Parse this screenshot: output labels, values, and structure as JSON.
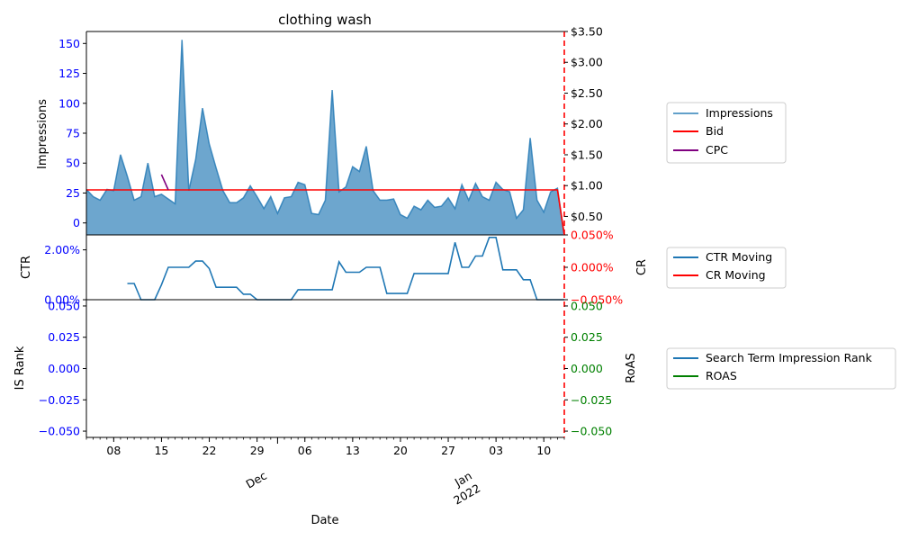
{
  "title": "clothing wash",
  "xlabel": "Date",
  "x_ticks": [
    "08",
    "15",
    "22",
    "29",
    "06",
    "13",
    "20",
    "27",
    "03",
    "10"
  ],
  "x_month_labels": [
    "Dec",
    "Jan"
  ],
  "x_year_label": "2022",
  "colors": {
    "impressions": "#1f77b4",
    "bid": "#ff0000",
    "cpc": "#800080",
    "ctr": "#1f77b4",
    "cr": "#ff0000",
    "isrank": "#1f77b4",
    "roas": "#008000",
    "left_ticks": "#0000ff",
    "right_ticks_mid": "#ff0000",
    "right_ticks_bottom": "#008000"
  },
  "panels": {
    "top": {
      "ylabel": "Impressions",
      "y_ticks": [
        "0",
        "25",
        "50",
        "75",
        "100",
        "125",
        "150"
      ],
      "y2_ticks": [
        "$0.50",
        "$1.00",
        "$1.50",
        "$2.00",
        "$2.50",
        "$3.00",
        "$3.50"
      ],
      "legend": [
        "Impressions",
        "Bid",
        "CPC"
      ]
    },
    "middle": {
      "ylabel": "CTR",
      "y2label": "CR",
      "y_ticks": [
        "0.00%",
        "2.00%"
      ],
      "y2_ticks": [
        "−0.050%",
        "0.000%",
        "0.050%"
      ],
      "legend": [
        "CTR Moving",
        "CR Moving"
      ]
    },
    "bottom": {
      "ylabel": "IS Rank",
      "y2label": "RoAS",
      "y_ticks": [
        "−0.050",
        "−0.025",
        "0.000",
        "0.025",
        "0.050"
      ],
      "y2_ticks": [
        "−0.050",
        "−0.025",
        "0.000",
        "0.025",
        "0.050"
      ],
      "legend": [
        "Search Term Impression Rank",
        "ROAS"
      ]
    }
  },
  "chart_data": [
    {
      "type": "area",
      "title": "clothing wash",
      "xlabel": "",
      "ylabel": "Impressions",
      "ylim": [
        -10,
        160
      ],
      "y2lim": [
        0.2,
        3.5
      ],
      "x_start": "2021-12-04",
      "series": [
        {
          "name": "Impressions",
          "axis": "left",
          "values": [
            28,
            22,
            19,
            28,
            27,
            57,
            39,
            19,
            22,
            50,
            22,
            24,
            20,
            16,
            153,
            27,
            53,
            96,
            66,
            46,
            27,
            17,
            17,
            21,
            31,
            22,
            12,
            22,
            8,
            21,
            22,
            34,
            32,
            8,
            7,
            19,
            111,
            26,
            30,
            47,
            43,
            64,
            27,
            19,
            19,
            20,
            7,
            4,
            14,
            11,
            19,
            13,
            14,
            21,
            12,
            32,
            19,
            33,
            22,
            19,
            34,
            28,
            26,
            4,
            11,
            71,
            19,
            9,
            26,
            29,
            -10
          ]
        },
        {
          "name": "Bid",
          "axis": "right",
          "values": [
            0.93,
            0.93,
            0.93,
            0.93,
            0.93,
            0.93,
            0.93,
            0.93,
            0.93,
            0.93,
            0.93,
            0.93,
            0.93,
            0.93,
            0.93,
            0.93,
            0.93,
            0.93,
            0.93,
            0.93,
            0.93,
            0.93,
            0.93,
            0.93,
            0.93,
            0.93,
            0.93,
            0.93,
            0.93,
            0.93,
            0.93,
            0.93,
            0.93,
            0.93,
            0.93,
            0.93,
            0.93,
            0.93,
            0.93,
            0.93,
            0.93,
            0.93,
            0.93,
            0.93,
            0.93,
            0.93,
            0.93,
            0.93,
            0.93,
            0.93,
            0.93,
            0.93,
            0.93,
            0.93,
            0.93,
            0.93,
            0.93,
            0.93,
            0.93,
            0.93,
            0.93,
            0.93,
            0.93,
            0.93,
            0.93,
            0.93,
            0.93,
            0.93,
            0.93,
            0.93,
            0.2
          ]
        },
        {
          "name": "CPC",
          "axis": "right",
          "points": [
            [
              11,
              1.18
            ],
            [
              12,
              0.93
            ]
          ]
        }
      ]
    },
    {
      "type": "line",
      "ylabel": "CTR",
      "y2label": "CR",
      "ylim": [
        0,
        2.6
      ],
      "y2lim": [
        -0.05,
        0.05
      ],
      "x_start": "2021-12-04",
      "series": [
        {
          "name": "CTR Moving",
          "start_index": 6,
          "values": [
            0.65,
            0.65,
            0.0,
            0.0,
            0.0,
            0.6,
            1.3,
            1.3,
            1.3,
            1.3,
            1.55,
            1.55,
            1.25,
            0.5,
            0.5,
            0.5,
            0.5,
            0.22,
            0.22,
            0.0,
            0.0,
            0.0,
            0.0,
            0.0,
            0.0,
            0.4,
            0.4,
            0.4,
            0.4,
            0.4,
            0.4,
            1.52,
            1.1,
            1.1,
            1.1,
            1.3,
            1.3,
            1.3,
            0.25,
            0.25,
            0.25,
            0.25,
            1.05,
            1.05,
            1.05,
            1.05,
            1.05,
            1.05,
            2.3,
            1.3,
            1.3,
            1.75,
            1.75,
            2.5,
            2.5,
            1.2,
            1.2,
            1.2,
            0.8,
            0.8,
            0.0,
            0.0,
            0.0,
            0.0,
            0.0
          ]
        },
        {
          "name": "CR Moving",
          "values": []
        }
      ]
    },
    {
      "type": "line",
      "ylabel": "IS Rank",
      "y2label": "RoAS",
      "ylim": [
        -0.055,
        0.055
      ],
      "y2lim": [
        -0.055,
        0.055
      ],
      "series": [
        {
          "name": "Search Term Impression Rank",
          "values": []
        },
        {
          "name": "ROAS",
          "values": []
        }
      ]
    }
  ]
}
